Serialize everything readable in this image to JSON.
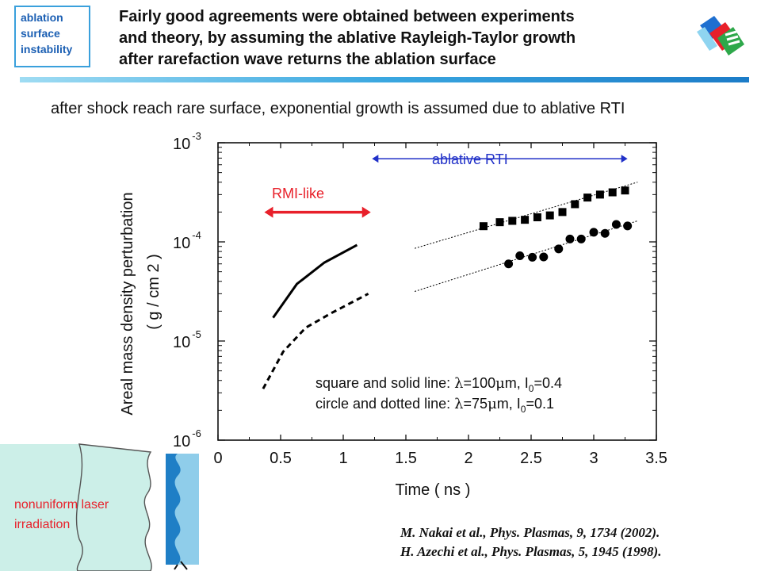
{
  "tag": {
    "lines": [
      "ablation",
      "surface",
      "instability"
    ]
  },
  "title": {
    "lines": [
      "Fairly good agreements were obtained between experiments",
      "and theory, by assuming the ablative Rayleigh-Taylor growth",
      "after rarefaction wave returns the ablation surface"
    ]
  },
  "subtitle": "after shock reach rare surface, exponential growth is assumed due to ablative RTI",
  "annotations": {
    "rmi": "RMI-like",
    "ablative": "ablative RTI",
    "laser_line1": "nonuniform laser",
    "laser_line2": "irradiation"
  },
  "legend": {
    "line1_prefix": "square and solid line: ",
    "line1_lambda": "λ",
    "line1_mid": "=100",
    "line1_mu": "μ",
    "line1_unit": "m, I",
    "line1_sub": "0",
    "line1_end": "=0.4",
    "line2_prefix": "circle and dotted line: ",
    "line2_lambda": "λ",
    "line2_mid": "=75",
    "line2_mu": "μ",
    "line2_unit": "m, I",
    "line2_sub": "0",
    "line2_end": "=0.1"
  },
  "refs": [
    "M. Nakai et al., Phys. Plasmas, 9, 1734 (2002).",
    "H. Azechi et al., Phys. Plasmas, 5, 1945 (1998)."
  ],
  "colors": {
    "red": "#e8202a",
    "blue": "#2030c8",
    "accent": "#1c7cc8",
    "laser": "#e8202a"
  },
  "chart_data": {
    "type": "scatter",
    "xlabel": "Time ( ns )",
    "ylabel": "Areal mass density perturbation",
    "ylabel_units": "( g / cm 2 )",
    "xlim": [
      0,
      3.5
    ],
    "ylim": [
      1e-06,
      0.001
    ],
    "yscale": "log",
    "xticks": [
      "0",
      "0.5",
      "1",
      "1.5",
      "2",
      "2.5",
      "3",
      "3.5"
    ],
    "yticks": [
      {
        "base": "10",
        "exp": "-3",
        "value": 0.001
      },
      {
        "base": "10",
        "exp": "-4",
        "value": 0.0001
      },
      {
        "base": "10",
        "exp": "-5",
        "value": 1e-05
      },
      {
        "base": "10",
        "exp": "-6",
        "value": 1e-06
      }
    ],
    "series": [
      {
        "marker": "square",
        "points": [
          [
            2.12,
            0.000144
          ],
          [
            2.25,
            0.000158
          ],
          [
            2.35,
            0.000163
          ],
          [
            2.45,
            0.000167
          ],
          [
            2.55,
            0.000177
          ],
          [
            2.65,
            0.000185
          ],
          [
            2.75,
            0.0002
          ],
          [
            2.85,
            0.00024
          ],
          [
            2.95,
            0.00028
          ],
          [
            3.05,
            0.0003
          ],
          [
            3.15,
            0.000316
          ],
          [
            3.25,
            0.00033
          ]
        ]
      },
      {
        "marker": "circle",
        "points": [
          [
            2.32,
            6e-05
          ],
          [
            2.41,
            7.25e-05
          ],
          [
            2.51,
            7e-05
          ],
          [
            2.6,
            7.05e-05
          ],
          [
            2.72,
            8.5e-05
          ],
          [
            2.81,
            0.000107
          ],
          [
            2.9,
            0.000107
          ],
          [
            3.0,
            0.000125
          ],
          [
            3.09,
            0.000122
          ],
          [
            3.18,
            0.00015
          ],
          [
            3.27,
            0.000145
          ]
        ]
      },
      {
        "line": "solid",
        "points": [
          [
            0.44,
            1.72e-05
          ],
          [
            0.63,
            3.76e-05
          ],
          [
            0.85,
            6.2e-05
          ],
          [
            1.11,
            9.3e-05
          ]
        ]
      },
      {
        "line": "dashed",
        "points": [
          [
            0.36,
            3.3e-06
          ],
          [
            0.52,
            7.8e-06
          ],
          [
            0.7,
            1.36e-05
          ],
          [
            0.9,
            1.9e-05
          ],
          [
            1.2,
            3e-05
          ]
        ]
      },
      {
        "line": "dotted-fit",
        "points": [
          [
            1.57,
            8.6e-05
          ],
          [
            3.35,
            0.0004
          ]
        ]
      },
      {
        "line": "dotted-fit",
        "points": [
          [
            1.57,
            3.16e-05
          ],
          [
            3.35,
            0.000163
          ]
        ]
      }
    ],
    "arrows": [
      {
        "label": "RMI-like",
        "x_from": 0.37,
        "x_to": 1.22,
        "y": 0.000199
      },
      {
        "label": "ablative RTI",
        "x_from": 1.23,
        "x_to": 3.27,
        "y": 0.00069
      }
    ]
  }
}
